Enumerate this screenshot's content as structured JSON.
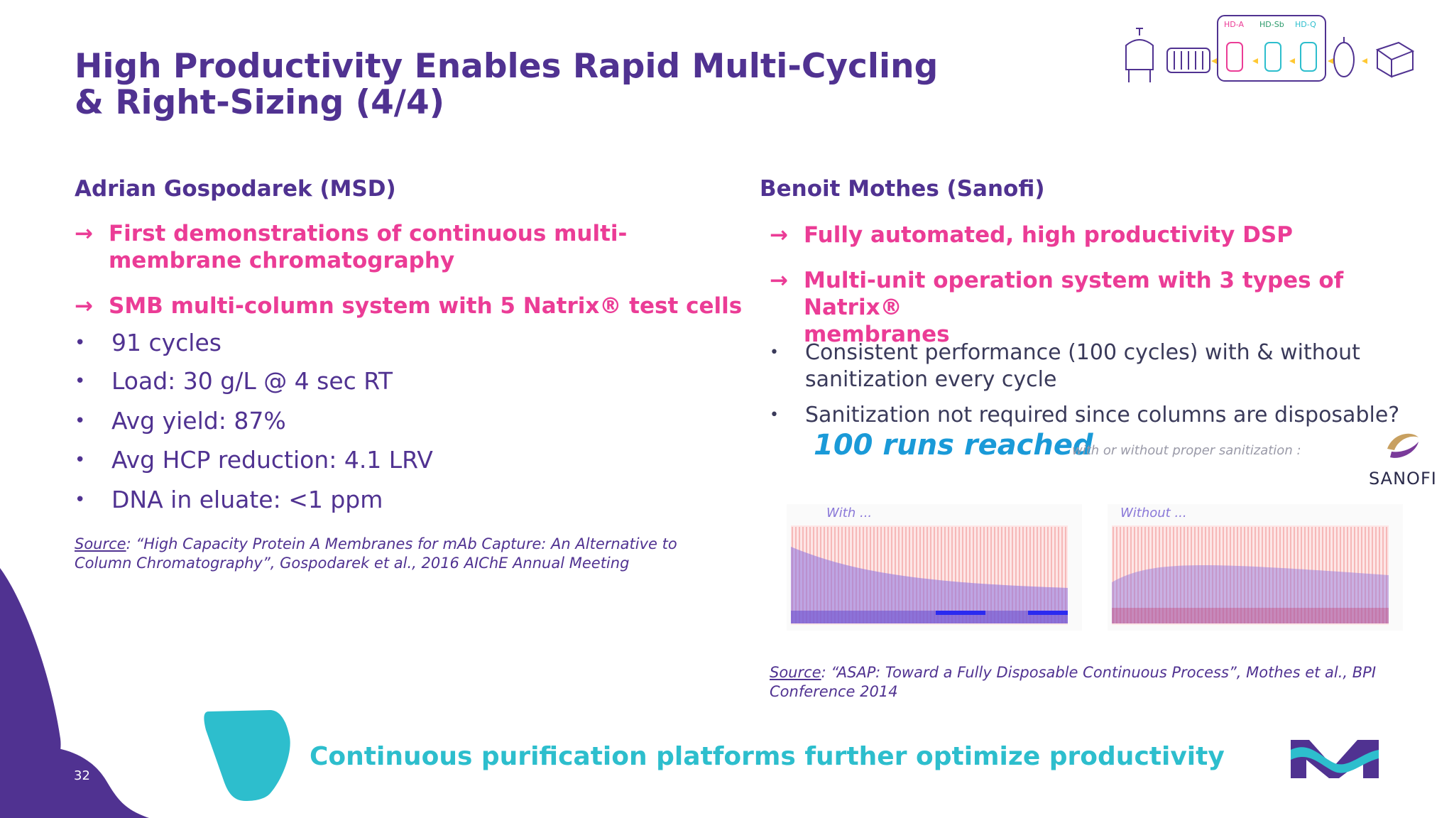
{
  "slide": {
    "title_line1": "High Productivity Enables Rapid Multi-Cycling",
    "title_line2": "& Right-Sizing (4/4)",
    "page_number": "32",
    "footer": "Continuous purification platforms further optimize productivity"
  },
  "process_diagram": {
    "labels": [
      "HD-A",
      "HD-Sb",
      "HD-Q"
    ]
  },
  "left": {
    "heading": "Adrian Gospodarek (MSD)",
    "arrows": [
      {
        "line1": "First demonstrations of continuous multi-",
        "line2": "membrane chromatography"
      },
      {
        "line1": "SMB multi-column system with 5 Natrix® test cells"
      }
    ],
    "bullets": [
      "91 cycles",
      "Load: 30 g/L @ 4 sec RT",
      "Avg yield: 87%",
      "Avg HCP reduction: 4.1 LRV",
      "DNA in eluate: <1 ppm"
    ],
    "source_label": "Source",
    "source_line1": ": “High Capacity Protein A Membranes for mAb Capture:  An Alternative to",
    "source_line2": "Column Chromatography”, Gospodarek et al., 2016 AIChE Annual Meeting"
  },
  "right": {
    "heading": "Benoit Mothes (Sanofi)",
    "arrows": [
      {
        "line1": "Fully automated, high productivity DSP"
      },
      {
        "line1": "Multi-unit operation system with 3 types of Natrix®",
        "line2": "membranes"
      }
    ],
    "bullets": [
      {
        "line1": "Consistent performance (100 cycles) with & without",
        "line2": "sanitization every cycle"
      },
      {
        "line1": "Sanitization not required since columns are disposable?"
      }
    ],
    "runs_big": "100 runs reached",
    "runs_small": "with or without proper sanitization :",
    "sanofi_logo_text": "SANOFI",
    "chart_with_label": "With ...",
    "chart_without_label": "Without ...",
    "source_label": "Source",
    "source_line1": ": “ASAP: Toward a Fully Disposable Continuous Process”, Mothes et al., BPI",
    "source_line2": "Conference 2014"
  },
  "colors": {
    "purple": "#503291",
    "pink": "#EB3C96",
    "teal": "#2DBECD"
  }
}
